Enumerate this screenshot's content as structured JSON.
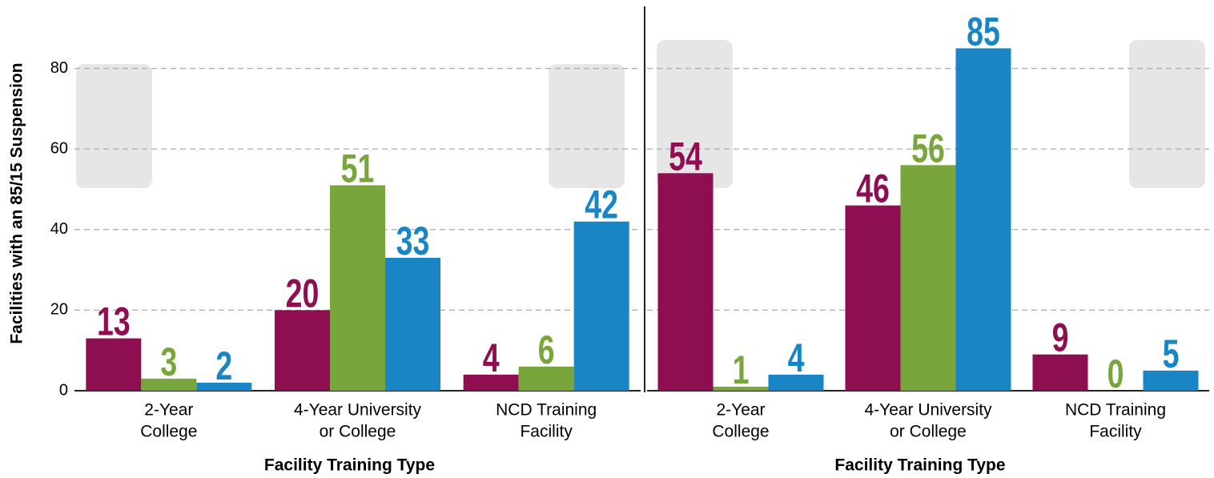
{
  "chart_data": [
    {
      "type": "bar",
      "ylabel": "Facilities with an 85/15 Suspension",
      "xlabel": "Facility Training Type",
      "categories": [
        [
          "2-Year",
          "College"
        ],
        [
          "4-Year University",
          "or College"
        ],
        [
          "NCD Training",
          "Facility"
        ]
      ],
      "series": [
        {
          "color": "#8e0e52",
          "values": [
            13,
            20,
            4
          ]
        },
        {
          "color": "#78a53c",
          "values": [
            3,
            51,
            6
          ]
        },
        {
          "color": "#1a85c4",
          "values": [
            2,
            33,
            42
          ]
        }
      ],
      "ylim": [
        0,
        97
      ],
      "yticks": [
        0,
        20,
        40,
        60,
        80
      ],
      "grid": true,
      "show_yticks": true
    },
    {
      "type": "bar",
      "xlabel": "Facility Training Type",
      "categories": [
        [
          "2-Year",
          "College"
        ],
        [
          "4-Year University",
          "or College"
        ],
        [
          "NCD Training",
          "Facility"
        ]
      ],
      "series": [
        {
          "color": "#8e0e52",
          "values": [
            54,
            46,
            9
          ]
        },
        {
          "color": "#78a53c",
          "values": [
            1,
            56,
            0
          ]
        },
        {
          "color": "#1a85c4",
          "values": [
            4,
            85,
            5
          ]
        }
      ],
      "ylim": [
        0,
        97
      ],
      "yticks": [
        0,
        20,
        40,
        60,
        80
      ],
      "grid": true,
      "show_yticks": false
    }
  ]
}
